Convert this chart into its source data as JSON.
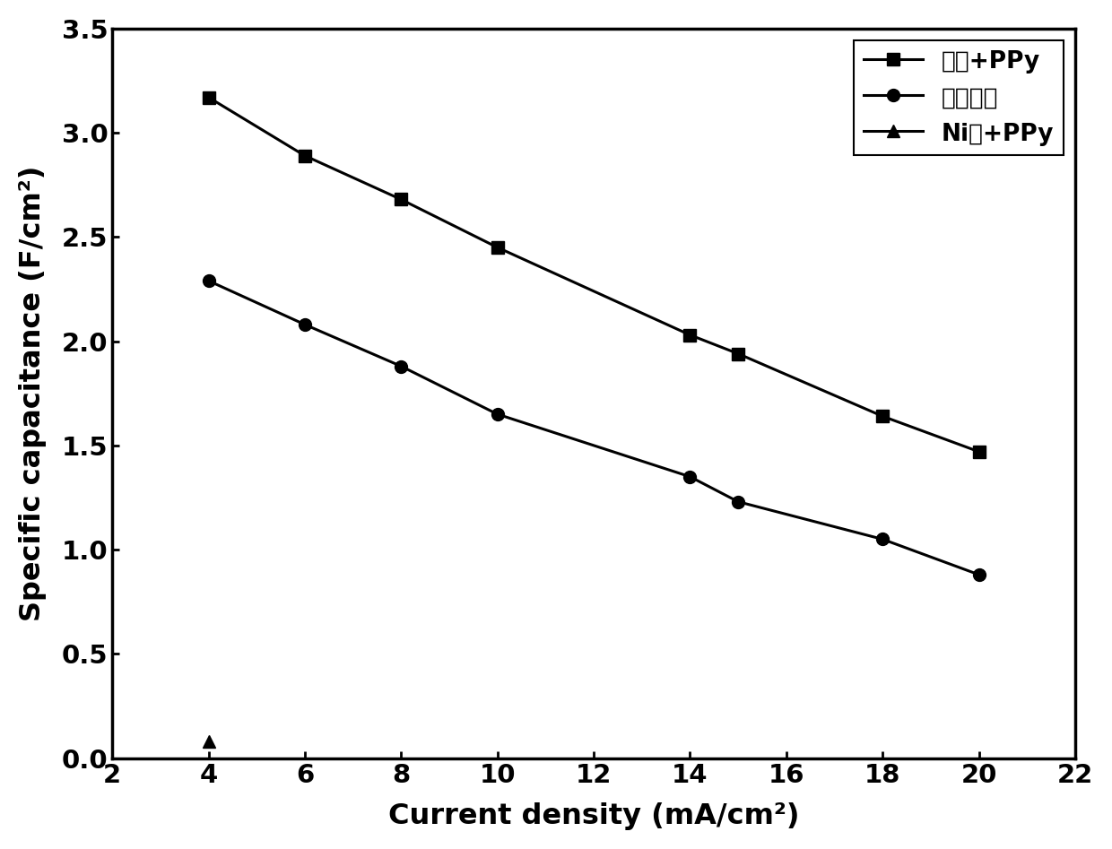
{
  "series1_label": "碳布+PPy",
  "series2_label": "空白碳布",
  "series3_label": "Ni网+PPy",
  "series1_x": [
    4,
    6,
    8,
    10,
    14,
    15,
    18,
    20
  ],
  "series1_y": [
    3.17,
    2.89,
    2.68,
    2.45,
    2.03,
    1.94,
    1.64,
    1.47
  ],
  "series2_x": [
    4,
    6,
    8,
    10,
    14,
    15,
    18,
    20
  ],
  "series2_y": [
    2.29,
    2.08,
    1.88,
    1.65,
    1.35,
    1.23,
    1.05,
    0.88
  ],
  "series3_x": [
    4
  ],
  "series3_y": [
    0.08
  ],
  "xlabel": "Current density (mA/cm²)",
  "ylabel": "Specific capacitance (F/cm²)",
  "xlim": [
    2,
    22
  ],
  "ylim": [
    0,
    3.5
  ],
  "xticks": [
    2,
    4,
    6,
    8,
    10,
    12,
    14,
    16,
    18,
    20,
    22
  ],
  "yticks": [
    0.0,
    0.5,
    1.0,
    1.5,
    2.0,
    2.5,
    3.0,
    3.5
  ],
  "line_color": "#000000",
  "marker_size": 10,
  "linewidth": 2.2,
  "legend_fontsize": 19,
  "axis_label_fontsize": 23,
  "tick_fontsize": 21,
  "background_color": "#ffffff"
}
